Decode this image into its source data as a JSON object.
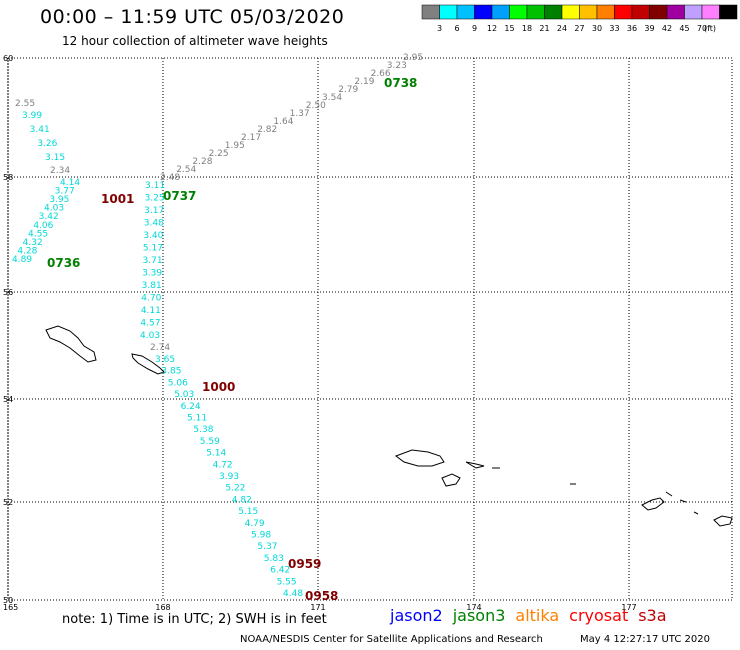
{
  "header": {
    "title": "00:00 – 11:59 UTC 05/03/2020",
    "subtitle": "12 hour collection of altimeter wave heights"
  },
  "legend": {
    "colors": [
      "#808080",
      "#00ffff",
      "#00c0ff",
      "#0000ff",
      "#00a0ff",
      "#00ff00",
      "#00c000",
      "#008000",
      "#ffff00",
      "#ffc000",
      "#ff8000",
      "#ff0000",
      "#c00000",
      "#800000",
      "#a000a0",
      "#c0a0ff",
      "#ff80ff",
      "#000000"
    ],
    "labels": [
      "3",
      "6",
      "9",
      "12",
      "15",
      "18",
      "21",
      "24",
      "27",
      "30",
      "33",
      "36",
      "39",
      "42",
      "45",
      "70"
    ],
    "unit": "(ft)"
  },
  "axes": {
    "lat_labels": [
      "60",
      "58",
      "56",
      "54",
      "52",
      "50"
    ],
    "lon_labels": [
      "165",
      "168",
      "171",
      "174",
      "177"
    ]
  },
  "tracks": [
    {
      "color": "#808080",
      "values": [
        "2.95",
        "3.23",
        "2.66",
        "2.19",
        "2.79",
        "3.54",
        "2.50",
        "1.37",
        "1.64",
        "2.82",
        "2.17",
        "1.95",
        "2.25",
        "2.28",
        "2.54",
        "2.48"
      ]
    },
    {
      "color": "#808080",
      "values": [
        "2.55"
      ]
    },
    {
      "color": "#00d8d8",
      "values": [
        "3.99",
        "3.41",
        "3.26",
        "3.15"
      ]
    },
    {
      "color": "#808080",
      "values": [
        "2.34"
      ]
    },
    {
      "color": "#00d8d8",
      "values": [
        "4.14",
        "3.77",
        "3.95",
        "4.03",
        "3.42",
        "4.06",
        "4.55",
        "4.32",
        "4.28",
        "4.89"
      ]
    },
    {
      "color": "#00d8d8",
      "values": [
        "3.11",
        "3.25",
        "3.17",
        "3.48",
        "3.40",
        "5.17",
        "3.71",
        "3.39",
        "3.81",
        "4.70",
        "4.11",
        "4.57",
        "4.03"
      ]
    },
    {
      "color": "#808080",
      "values": [
        "2.74"
      ]
    },
    {
      "color": "#00d8d8",
      "values": [
        "3.65",
        "3.85",
        "5.06",
        "5.03",
        "6.24",
        "5.11",
        "5.38",
        "5.59",
        "5.14",
        "4.72",
        "3.93",
        "5.22",
        "4.82",
        "5.15",
        "4.79",
        "5.98",
        "5.37",
        "5.83",
        "6.42",
        "5.55",
        "4.48"
      ]
    }
  ],
  "time_labels": [
    {
      "text": "0738",
      "color": "#008000"
    },
    {
      "text": "0737",
      "color": "#008000"
    },
    {
      "text": "0736",
      "color": "#008000"
    },
    {
      "text": "1001",
      "color": "#800000"
    },
    {
      "text": "1000",
      "color": "#800000"
    },
    {
      "text": "0959",
      "color": "#800000"
    },
    {
      "text": "0958",
      "color": "#800000"
    }
  ],
  "footer": {
    "note": "note:  1) Time is in UTC;  2) SWH is in feet",
    "satellites": [
      {
        "name": "jason2",
        "color": "#0000ff"
      },
      {
        "name": "jason3",
        "color": "#008000"
      },
      {
        "name": "altika",
        "color": "#ff8000"
      },
      {
        "name": "cryosat",
        "color": "#ff0000"
      },
      {
        "name": "s3a",
        "color": "#c00000"
      }
    ],
    "credit": "NOAA/NESDIS Center for Satellite Applications and Research",
    "timestamp": "May  4 12:27:17 UTC 2020"
  }
}
